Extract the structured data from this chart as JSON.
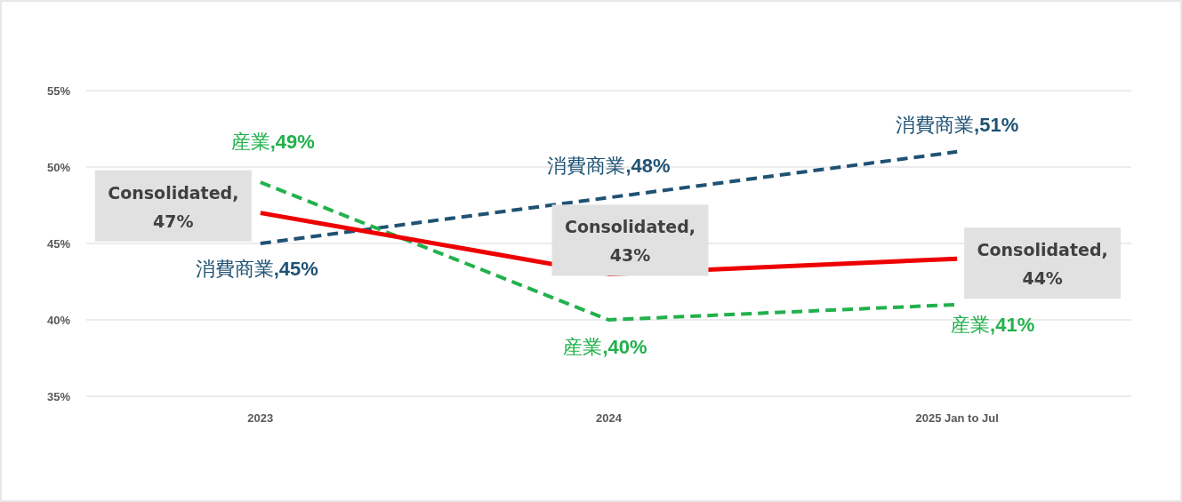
{
  "chart_data": {
    "type": "line",
    "categories": [
      "2023",
      "2024",
      "2025 Jan to Jul"
    ],
    "series": [
      {
        "color": "#1f5274",
        "line_style": "dashed",
        "values": [
          45,
          48,
          51
        ],
        "value_labels": [
          "消費商業,45%",
          "消費商業,48%",
          "消費商業,51%"
        ]
      },
      {
        "color": "#22b14c",
        "line_style": "dashed",
        "values": [
          49,
          40,
          41
        ],
        "value_labels": [
          "産業,49%",
          "産業,40%",
          "産業,41%"
        ]
      },
      {
        "color": "#ee0000",
        "line_style": "solid",
        "values": [
          47,
          43,
          44
        ],
        "value_labels": [
          "Consolidated, 47%",
          "Consolidated, 43%",
          "Consolidated, 44%"
        ]
      }
    ],
    "ylim": [
      35,
      55
    ],
    "yticks": [
      {
        "value": 35,
        "label": "35%"
      },
      {
        "value": 40,
        "label": "40%"
      },
      {
        "value": 45,
        "label": "45%"
      },
      {
        "value": 50,
        "label": "50%"
      },
      {
        "value": 55,
        "label": "55%"
      }
    ],
    "grid": "y",
    "marker": "none"
  }
}
